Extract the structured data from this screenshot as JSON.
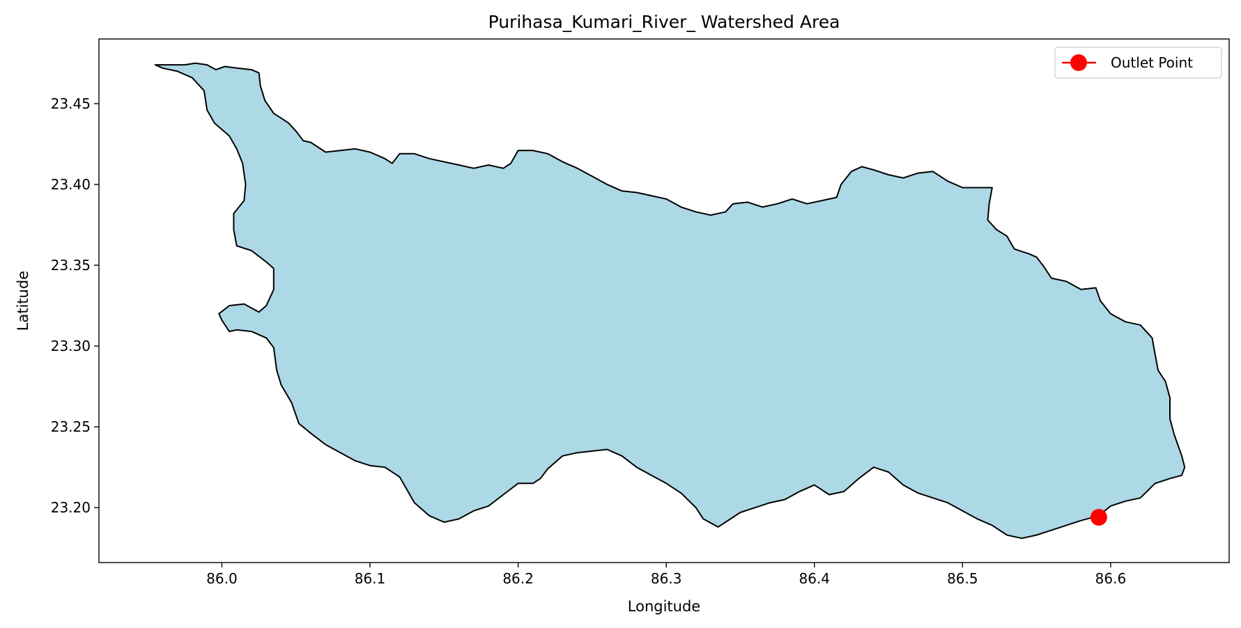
{
  "chart_data": {
    "type": "map",
    "title": "Purihasa_Kumari_River_ Watershed Area",
    "xlabel": "Longitude",
    "ylabel": "Latitude",
    "xlim": [
      85.917,
      86.68
    ],
    "ylim": [
      23.166,
      23.49
    ],
    "x_ticks": [
      86.0,
      86.1,
      86.2,
      86.3,
      86.4,
      86.5,
      86.6
    ],
    "x_tick_labels": [
      "86.0",
      "86.1",
      "86.2",
      "86.3",
      "86.4",
      "86.5",
      "86.6"
    ],
    "y_ticks": [
      23.2,
      23.25,
      23.3,
      23.35,
      23.4,
      23.45
    ],
    "y_tick_labels": [
      "23.20",
      "23.25",
      "23.30",
      "23.35",
      "23.40",
      "23.45"
    ],
    "grid": false,
    "legend": {
      "position": "top-right",
      "entries": [
        {
          "label": "Outlet Point",
          "color": "#ff0000",
          "marker": "circle"
        }
      ]
    },
    "watershed": {
      "fill": "#add8e6",
      "edge": "#000000",
      "boundary": [
        [
          85.955,
          23.474
        ],
        [
          85.975,
          23.474
        ],
        [
          85.982,
          23.475
        ],
        [
          85.99,
          23.474
        ],
        [
          85.996,
          23.471
        ],
        [
          86.002,
          23.473
        ],
        [
          86.01,
          23.472
        ],
        [
          86.02,
          23.471
        ],
        [
          86.025,
          23.469
        ],
        [
          86.026,
          23.461
        ],
        [
          86.029,
          23.452
        ],
        [
          86.035,
          23.444
        ],
        [
          86.04,
          23.441
        ],
        [
          86.045,
          23.438
        ],
        [
          86.05,
          23.433
        ],
        [
          86.055,
          23.427
        ],
        [
          86.06,
          23.426
        ],
        [
          86.065,
          23.423
        ],
        [
          86.07,
          23.42
        ],
        [
          86.08,
          23.421
        ],
        [
          86.09,
          23.422
        ],
        [
          86.1,
          23.42
        ],
        [
          86.11,
          23.416
        ],
        [
          86.115,
          23.413
        ],
        [
          86.12,
          23.419
        ],
        [
          86.13,
          23.419
        ],
        [
          86.14,
          23.416
        ],
        [
          86.15,
          23.414
        ],
        [
          86.16,
          23.412
        ],
        [
          86.17,
          23.41
        ],
        [
          86.18,
          23.412
        ],
        [
          86.19,
          23.41
        ],
        [
          86.195,
          23.413
        ],
        [
          86.2,
          23.421
        ],
        [
          86.21,
          23.421
        ],
        [
          86.22,
          23.419
        ],
        [
          86.23,
          23.414
        ],
        [
          86.24,
          23.41
        ],
        [
          86.25,
          23.405
        ],
        [
          86.26,
          23.4
        ],
        [
          86.27,
          23.396
        ],
        [
          86.28,
          23.395
        ],
        [
          86.29,
          23.393
        ],
        [
          86.3,
          23.391
        ],
        [
          86.31,
          23.386
        ],
        [
          86.32,
          23.383
        ],
        [
          86.33,
          23.381
        ],
        [
          86.34,
          23.383
        ],
        [
          86.345,
          23.388
        ],
        [
          86.355,
          23.389
        ],
        [
          86.365,
          23.386
        ],
        [
          86.375,
          23.388
        ],
        [
          86.385,
          23.391
        ],
        [
          86.395,
          23.388
        ],
        [
          86.405,
          23.39
        ],
        [
          86.415,
          23.392
        ],
        [
          86.418,
          23.4
        ],
        [
          86.425,
          23.408
        ],
        [
          86.432,
          23.411
        ],
        [
          86.44,
          23.409
        ],
        [
          86.45,
          23.406
        ],
        [
          86.46,
          23.404
        ],
        [
          86.47,
          23.407
        ],
        [
          86.48,
          23.408
        ],
        [
          86.49,
          23.402
        ],
        [
          86.5,
          23.398
        ],
        [
          86.51,
          23.398
        ],
        [
          86.52,
          23.398
        ],
        [
          86.518,
          23.388
        ],
        [
          86.517,
          23.378
        ],
        [
          86.523,
          23.372
        ],
        [
          86.53,
          23.368
        ],
        [
          86.535,
          23.36
        ],
        [
          86.545,
          23.357
        ],
        [
          86.55,
          23.355
        ],
        [
          86.555,
          23.349
        ],
        [
          86.56,
          23.342
        ],
        [
          86.57,
          23.34
        ],
        [
          86.58,
          23.335
        ],
        [
          86.59,
          23.336
        ],
        [
          86.593,
          23.328
        ],
        [
          86.6,
          23.32
        ],
        [
          86.61,
          23.315
        ],
        [
          86.62,
          23.313
        ],
        [
          86.628,
          23.305
        ],
        [
          86.63,
          23.295
        ],
        [
          86.632,
          23.285
        ],
        [
          86.637,
          23.278
        ],
        [
          86.64,
          23.268
        ],
        [
          86.64,
          23.255
        ],
        [
          86.643,
          23.245
        ],
        [
          86.648,
          23.232
        ],
        [
          86.65,
          23.225
        ],
        [
          86.648,
          23.22
        ],
        [
          86.64,
          23.218
        ],
        [
          86.63,
          23.215
        ],
        [
          86.62,
          23.206
        ],
        [
          86.61,
          23.204
        ],
        [
          86.6,
          23.201
        ],
        [
          86.592,
          23.195
        ],
        [
          86.58,
          23.192
        ],
        [
          86.57,
          23.189
        ],
        [
          86.56,
          23.186
        ],
        [
          86.55,
          23.183
        ],
        [
          86.54,
          23.181
        ],
        [
          86.53,
          23.183
        ],
        [
          86.52,
          23.189
        ],
        [
          86.51,
          23.193
        ],
        [
          86.5,
          23.198
        ],
        [
          86.49,
          23.203
        ],
        [
          86.48,
          23.206
        ],
        [
          86.47,
          23.209
        ],
        [
          86.46,
          23.214
        ],
        [
          86.45,
          23.222
        ],
        [
          86.44,
          23.225
        ],
        [
          86.43,
          23.218
        ],
        [
          86.42,
          23.21
        ],
        [
          86.41,
          23.208
        ],
        [
          86.4,
          23.214
        ],
        [
          86.39,
          23.21
        ],
        [
          86.38,
          23.205
        ],
        [
          86.37,
          23.203
        ],
        [
          86.36,
          23.2
        ],
        [
          86.35,
          23.197
        ],
        [
          86.345,
          23.194
        ],
        [
          86.335,
          23.188
        ],
        [
          86.325,
          23.193
        ],
        [
          86.32,
          23.2
        ],
        [
          86.31,
          23.209
        ],
        [
          86.3,
          23.215
        ],
        [
          86.29,
          23.22
        ],
        [
          86.28,
          23.225
        ],
        [
          86.27,
          23.232
        ],
        [
          86.26,
          23.236
        ],
        [
          86.25,
          23.235
        ],
        [
          86.24,
          23.234
        ],
        [
          86.23,
          23.232
        ],
        [
          86.22,
          23.224
        ],
        [
          86.215,
          23.218
        ],
        [
          86.21,
          23.215
        ],
        [
          86.2,
          23.215
        ],
        [
          86.19,
          23.208
        ],
        [
          86.18,
          23.201
        ],
        [
          86.17,
          23.198
        ],
        [
          86.16,
          23.193
        ],
        [
          86.15,
          23.191
        ],
        [
          86.14,
          23.195
        ],
        [
          86.13,
          23.203
        ],
        [
          86.12,
          23.219
        ],
        [
          86.11,
          23.225
        ],
        [
          86.1,
          23.226
        ],
        [
          86.09,
          23.229
        ],
        [
          86.08,
          23.234
        ],
        [
          86.07,
          23.239
        ],
        [
          86.06,
          23.246
        ],
        [
          86.052,
          23.252
        ],
        [
          86.047,
          23.265
        ],
        [
          86.04,
          23.276
        ],
        [
          86.037,
          23.285
        ],
        [
          86.035,
          23.299
        ],
        [
          86.03,
          23.305
        ],
        [
          86.02,
          23.309
        ],
        [
          86.01,
          23.31
        ],
        [
          86.005,
          23.309
        ],
        [
          86.0,
          23.316
        ],
        [
          85.998,
          23.32
        ],
        [
          86.005,
          23.325
        ],
        [
          86.015,
          23.326
        ],
        [
          86.025,
          23.321
        ],
        [
          86.03,
          23.325
        ],
        [
          86.035,
          23.335
        ],
        [
          86.035,
          23.348
        ],
        [
          86.03,
          23.352
        ],
        [
          86.02,
          23.359
        ],
        [
          86.01,
          23.362
        ],
        [
          86.008,
          23.372
        ],
        [
          86.008,
          23.382
        ],
        [
          86.015,
          23.39
        ],
        [
          86.016,
          23.4
        ],
        [
          86.014,
          23.413
        ],
        [
          86.01,
          23.422
        ],
        [
          86.005,
          23.43
        ],
        [
          85.995,
          23.438
        ],
        [
          85.99,
          23.446
        ],
        [
          85.988,
          23.458
        ],
        [
          85.98,
          23.466
        ],
        [
          85.97,
          23.47
        ],
        [
          85.96,
          23.472
        ]
      ]
    },
    "outlet_point": {
      "label": "Outlet Point",
      "lon": 86.592,
      "lat": 23.194,
      "color": "#ff0000"
    }
  }
}
